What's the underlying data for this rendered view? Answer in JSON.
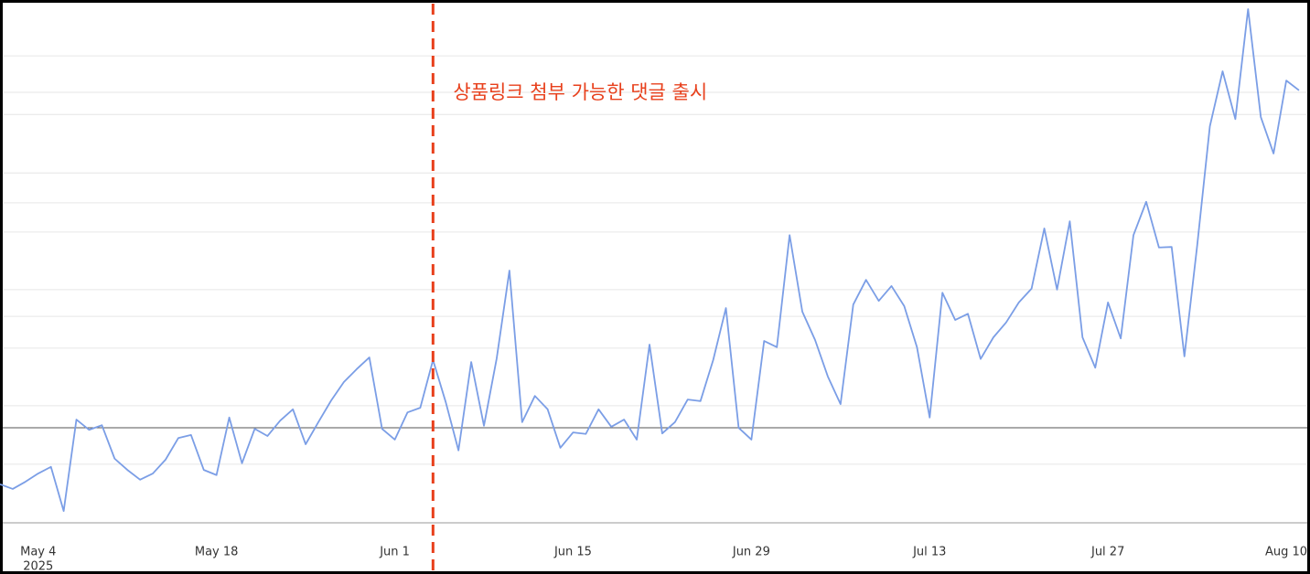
{
  "chart_data": {
    "type": "line",
    "x": [
      "2025-05-01",
      "2025-05-02",
      "2025-05-03",
      "2025-05-04",
      "2025-05-05",
      "2025-05-06",
      "2025-05-07",
      "2025-05-08",
      "2025-05-09",
      "2025-05-10",
      "2025-05-11",
      "2025-05-12",
      "2025-05-13",
      "2025-05-14",
      "2025-05-15",
      "2025-05-16",
      "2025-05-17",
      "2025-05-18",
      "2025-05-19",
      "2025-05-20",
      "2025-05-21",
      "2025-05-22",
      "2025-05-23",
      "2025-05-24",
      "2025-05-25",
      "2025-05-26",
      "2025-05-27",
      "2025-05-28",
      "2025-05-29",
      "2025-05-30",
      "2025-05-31",
      "2025-06-01",
      "2025-06-02",
      "2025-06-03",
      "2025-06-04",
      "2025-06-05",
      "2025-06-06",
      "2025-06-07",
      "2025-06-08",
      "2025-06-09",
      "2025-06-10",
      "2025-06-11",
      "2025-06-12",
      "2025-06-13",
      "2025-06-14",
      "2025-06-15",
      "2025-06-16",
      "2025-06-17",
      "2025-06-18",
      "2025-06-19",
      "2025-06-20",
      "2025-06-21",
      "2025-06-22",
      "2025-06-23",
      "2025-06-24",
      "2025-06-25",
      "2025-06-26",
      "2025-06-27",
      "2025-06-28",
      "2025-06-29",
      "2025-06-30",
      "2025-07-01",
      "2025-07-02",
      "2025-07-03",
      "2025-07-04",
      "2025-07-05",
      "2025-07-06",
      "2025-07-07",
      "2025-07-08",
      "2025-07-09",
      "2025-07-10",
      "2025-07-11",
      "2025-07-12",
      "2025-07-13",
      "2025-07-14",
      "2025-07-15",
      "2025-07-16",
      "2025-07-17",
      "2025-07-18",
      "2025-07-19",
      "2025-07-20",
      "2025-07-21",
      "2025-07-22",
      "2025-07-23",
      "2025-07-24",
      "2025-07-25",
      "2025-07-26",
      "2025-07-27",
      "2025-07-28",
      "2025-07-29",
      "2025-07-30",
      "2025-07-31",
      "2025-08-01",
      "2025-08-02",
      "2025-08-03",
      "2025-08-04",
      "2025-08-05",
      "2025-08-06",
      "2025-08-07",
      "2025-08-08",
      "2025-08-09",
      "2025-08-10",
      "2025-08-11"
    ],
    "series": [
      {
        "color": "#7b9ee6",
        "values": [
          7.5,
          6.6,
          8.0,
          9.6,
          10.9,
          2.3,
          20.1,
          18.1,
          19.0,
          12.5,
          10.3,
          8.4,
          9.6,
          12.3,
          16.5,
          17.1,
          10.3,
          9.3,
          20.5,
          11.6,
          18.3,
          16.9,
          19.9,
          22.1,
          15.3,
          19.6,
          23.8,
          27.4,
          29.9,
          32.2,
          18.3,
          16.2,
          21.5,
          22.4,
          31.7,
          23.5,
          14.1,
          31.3,
          18.9,
          32.0,
          49.1,
          19.6,
          24.7,
          22.1,
          14.6,
          17.6,
          17.3,
          22.1,
          18.7,
          20.1,
          16.2,
          34.7,
          17.4,
          19.6,
          24.0,
          23.7,
          31.7,
          41.8,
          18.5,
          16.2,
          35.4,
          34.2,
          56.0,
          41.1,
          35.6,
          28.5,
          23.1,
          42.5,
          47.3,
          43.2,
          46.1,
          42.2,
          34.2,
          20.5,
          44.8,
          39.5,
          40.7,
          31.9,
          36.1,
          39.0,
          42.9,
          45.6,
          57.3,
          45.4,
          58.7,
          36.1,
          30.2,
          42.9,
          35.9,
          56.0,
          62.5,
          53.6,
          53.7,
          32.4,
          53.9,
          77.2,
          87.9,
          78.6,
          100.0,
          79.0,
          71.9,
          86.1,
          84.2
        ]
      }
    ],
    "xlim": [
      "2025-05-01",
      "2025-08-11"
    ],
    "xticks": [
      {
        "value": "2025-05-04",
        "label": "May 4"
      },
      {
        "value": "2025-05-18",
        "label": "May 18"
      },
      {
        "value": "2025-06-01",
        "label": "Jun 1"
      },
      {
        "value": "2025-06-15",
        "label": "Jun 15"
      },
      {
        "value": "2025-06-29",
        "label": "Jun 29"
      },
      {
        "value": "2025-07-13",
        "label": "Jul 13"
      },
      {
        "value": "2025-07-27",
        "label": "Jul 27"
      },
      {
        "value": "2025-08-10",
        "label": "Aug 10"
      }
    ],
    "x_year_label": "2025",
    "ylim": [
      0,
      100
    ],
    "gridlines": [
      90.9,
      83.8,
      79.5,
      68.1,
      62.3,
      56.6,
      45.4,
      40.2,
      34.0,
      22.8,
      11.4
    ],
    "reference_line": 18.5,
    "annotation": {
      "text": "상품링크 첨부 가능한 댓글 출시",
      "x": "2025-06-04",
      "color": "#e8401c"
    }
  }
}
